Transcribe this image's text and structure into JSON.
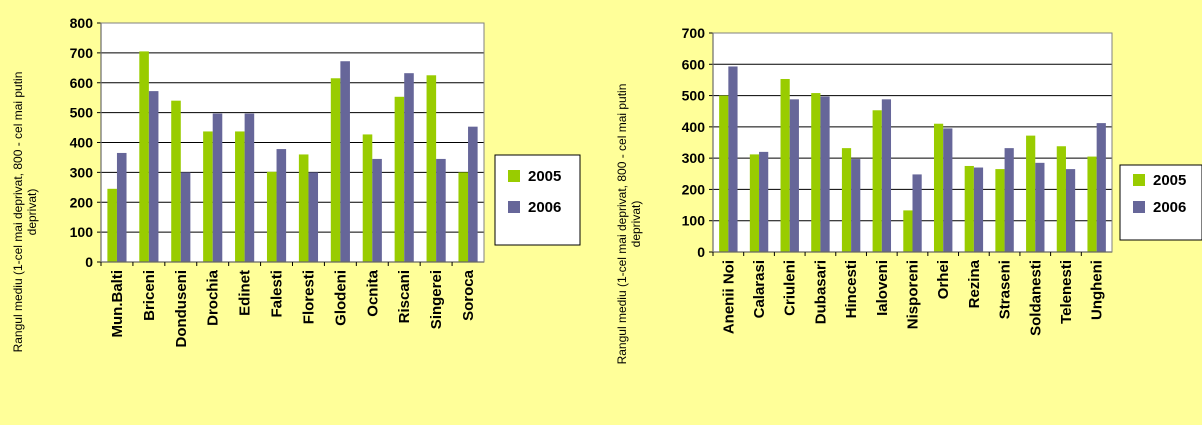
{
  "colors": {
    "background": "#ffff99",
    "plot_bg": "#ffffff",
    "series_2005": "#99cc00",
    "series_2006": "#666699",
    "text": "#000000"
  },
  "chart_data": [
    {
      "type": "bar",
      "ylabel": "Rangul mediu (1-cel mai deprivat, 800 - cel mai putin deprivat)",
      "ylim": [
        0,
        800
      ],
      "yticks": [
        0,
        100,
        200,
        300,
        400,
        500,
        600,
        700,
        800
      ],
      "grid": true,
      "legend_position": "right",
      "categories": [
        "Mun.Balti",
        "Briceni",
        "Donduseni",
        "Drochia",
        "Edinet",
        "Falesti",
        "Floresti",
        "Glodeni",
        "Ocnita",
        "Riscani",
        "Singerei",
        "Soroca"
      ],
      "series": [
        {
          "name": "2005",
          "values": [
            245,
            705,
            540,
            437,
            437,
            302,
            360,
            615,
            427,
            553,
            625,
            300
          ]
        },
        {
          "name": "2006",
          "values": [
            365,
            572,
            300,
            497,
            497,
            378,
            300,
            672,
            345,
            632,
            345,
            453
          ]
        }
      ]
    },
    {
      "type": "bar",
      "ylabel": "Rangul mediu (1-cel mai deprivat, 800 - cel mai putin deprivat)",
      "ylim": [
        0,
        700
      ],
      "yticks": [
        0,
        100,
        200,
        300,
        400,
        500,
        600,
        700
      ],
      "grid": true,
      "legend_position": "right",
      "categories": [
        "Anenii Noi",
        "Calarasi",
        "Criuleni",
        "Dubasari",
        "Hincesti",
        "Ialoveni",
        "Nisporeni",
        "Orhei",
        "Rezina",
        "Straseni",
        "Soldanesti",
        "Telenesti",
        "Ungheni"
      ],
      "series": [
        {
          "name": "2005",
          "values": [
            500,
            312,
            553,
            508,
            332,
            453,
            133,
            410,
            275,
            265,
            372,
            338,
            305
          ]
        },
        {
          "name": "2006",
          "values": [
            593,
            320,
            488,
            497,
            297,
            488,
            248,
            395,
            270,
            332,
            285,
            265,
            412
          ]
        }
      ]
    }
  ]
}
